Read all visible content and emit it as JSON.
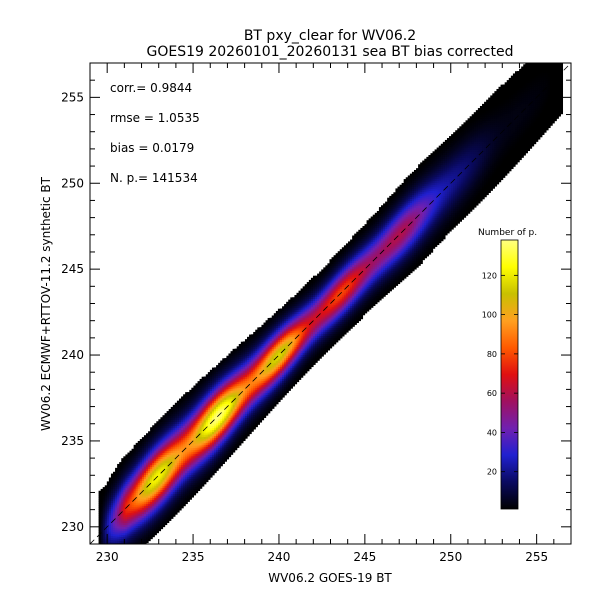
{
  "chart_data": {
    "type": "heatmap",
    "title": "BT pxy_clear for WV06.2",
    "subtitle": "GOES19 20260101_20260131 sea BT bias corrected",
    "xlabel": "WV06.2 GOES-19 BT",
    "ylabel": "WV06.2 ECMWF+RTTOV-11.2 synthetic BT",
    "xlim": [
      229,
      257
    ],
    "ylim": [
      229,
      257
    ],
    "xticks": [
      230,
      235,
      240,
      245,
      250,
      255
    ],
    "yticks": [
      230,
      235,
      240,
      245,
      250,
      255
    ],
    "diagonal": "1:1 dashed line",
    "stats": [
      {
        "label": "corr.=",
        "value": "0.9844"
      },
      {
        "label": "rmse =",
        "value": "1.0535"
      },
      {
        "label": "bias =",
        "value": "0.0179"
      },
      {
        "label": "N. p.=",
        "value": "141534"
      }
    ],
    "colorbar": {
      "title": "Number of p.",
      "range": [
        1,
        138
      ],
      "ticks": [
        20,
        40,
        60,
        80,
        100,
        120
      ],
      "colors": [
        "#000000",
        "#0a0a60",
        "#2020d0",
        "#7020b0",
        "#a01060",
        "#e01010",
        "#ff5a00",
        "#ffa020",
        "#c8c000",
        "#ffff00",
        "#ffff80"
      ]
    },
    "density": {
      "x_start": 229.5,
      "x_end": 256.5,
      "slope": 1.0,
      "offset": 0.0,
      "width_bt": 1.3,
      "peak_counts": 138,
      "peak_x": 236
    }
  }
}
